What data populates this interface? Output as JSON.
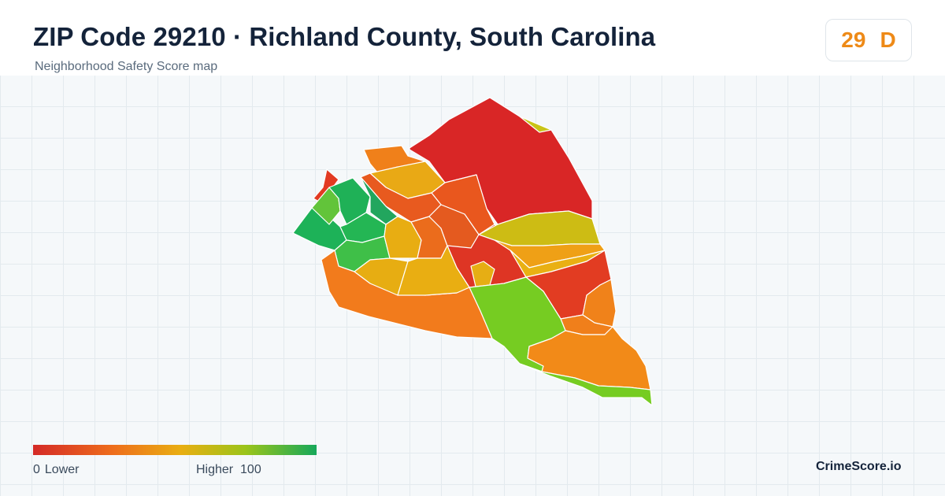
{
  "header": {
    "title": "ZIP Code 29210 · Richland County, South Carolina",
    "subtitle": "Neighborhood Safety Score map"
  },
  "score": {
    "value": "29",
    "grade": "D",
    "color": "#ee8a17"
  },
  "legend": {
    "min": "0",
    "min_label": "Lower",
    "max_label": "Higher",
    "max": "100",
    "colors": [
      "#d42a27",
      "#ee6d1c",
      "#e9ae12",
      "#9bc41a",
      "#16a85a"
    ]
  },
  "brand": "CrimeScore.io"
}
